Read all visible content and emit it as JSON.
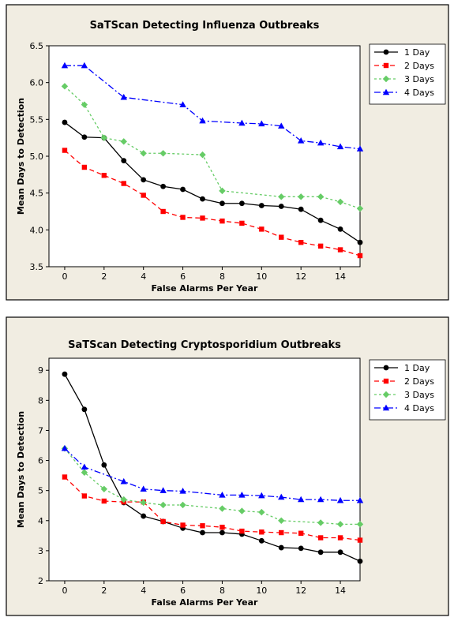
{
  "chart_data": [
    {
      "type": "line",
      "title": "SaTScan Detecting Influenza Outbreaks",
      "xlabel": "False Alarms Per Year",
      "ylabel": "Mean Days to Detection",
      "xlim": [
        -0.8,
        15
      ],
      "ylim": [
        3.5,
        6.5
      ],
      "xticks": [
        0,
        2,
        4,
        6,
        8,
        10,
        12,
        14
      ],
      "yticks": [
        3.5,
        4.0,
        4.5,
        5.0,
        5.5,
        6.0,
        6.5
      ],
      "ytick_labels": [
        "3.5",
        "4.0",
        "4.5",
        "5.0",
        "5.5",
        "6.0",
        "6.5"
      ],
      "legend_position": "top-right",
      "x": [
        0,
        1,
        2,
        3,
        4,
        5,
        6,
        7,
        8,
        9,
        10,
        11,
        12,
        13,
        14,
        15
      ],
      "series": [
        {
          "name": "1 Day",
          "color": "#000000",
          "dash": "",
          "marker": "circle",
          "values": [
            5.46,
            5.26,
            5.25,
            4.94,
            4.68,
            4.59,
            4.55,
            4.42,
            4.36,
            4.36,
            4.33,
            4.32,
            4.28,
            4.13,
            4.01,
            3.83
          ]
        },
        {
          "name": "2 Days",
          "color": "#ff0000",
          "dash": "6,4",
          "marker": "square",
          "values": [
            5.08,
            4.85,
            4.74,
            4.63,
            4.47,
            4.25,
            4.17,
            4.16,
            4.12,
            4.09,
            4.01,
            3.9,
            3.83,
            3.78,
            3.73,
            3.65
          ]
        },
        {
          "name": "3 Days",
          "color": "#66cc66",
          "dash": "3,3",
          "marker": "diamond",
          "values": [
            5.95,
            5.7,
            5.25,
            5.2,
            5.04,
            5.04,
            null,
            5.02,
            4.53,
            null,
            null,
            4.45,
            4.45,
            4.45,
            4.38,
            4.29
          ]
        },
        {
          "name": "4 Days",
          "color": "#0000ff",
          "dash": "8,3,2,3",
          "marker": "triangle",
          "values": [
            6.23,
            6.23,
            null,
            5.8,
            null,
            null,
            5.7,
            5.48,
            null,
            5.45,
            5.44,
            5.41,
            5.21,
            5.18,
            5.13,
            5.1
          ]
        }
      ]
    },
    {
      "type": "line",
      "title": "SaTScan Detecting Cryptosporidium Outbreaks",
      "xlabel": "False Alarms Per Year",
      "ylabel": "Mean Days to Detection",
      "xlim": [
        -0.8,
        15
      ],
      "ylim": [
        2,
        9.4
      ],
      "xticks": [
        0,
        2,
        4,
        6,
        8,
        10,
        12,
        14
      ],
      "yticks": [
        2,
        3,
        4,
        5,
        6,
        7,
        8,
        9
      ],
      "ytick_labels": [
        "2",
        "3",
        "4",
        "5",
        "6",
        "7",
        "8",
        "9"
      ],
      "legend_position": "top-right",
      "x": [
        0,
        1,
        2,
        3,
        4,
        5,
        6,
        7,
        8,
        9,
        10,
        11,
        12,
        13,
        14,
        15
      ],
      "series": [
        {
          "name": "1 Day",
          "color": "#000000",
          "dash": "",
          "marker": "circle",
          "values": [
            8.87,
            7.7,
            5.85,
            4.6,
            4.15,
            3.97,
            3.75,
            3.6,
            3.6,
            3.55,
            3.33,
            3.1,
            3.08,
            2.95,
            2.95,
            2.65
          ]
        },
        {
          "name": "2 Days",
          "color": "#ff0000",
          "dash": "6,4",
          "marker": "square",
          "values": [
            5.45,
            4.82,
            4.65,
            4.62,
            4.62,
            3.97,
            3.85,
            3.83,
            3.78,
            3.65,
            3.62,
            3.6,
            3.58,
            3.43,
            3.43,
            3.35
          ]
        },
        {
          "name": "3 Days",
          "color": "#66cc66",
          "dash": "3,3",
          "marker": "diamond",
          "values": [
            6.4,
            5.6,
            5.05,
            4.7,
            4.6,
            4.52,
            4.52,
            null,
            4.4,
            4.32,
            4.28,
            4.0,
            null,
            3.93,
            3.88,
            3.88
          ]
        },
        {
          "name": "4 Days",
          "color": "#0000ff",
          "dash": "8,3,2,3",
          "marker": "triangle",
          "values": [
            6.4,
            5.78,
            null,
            5.3,
            5.05,
            5.0,
            4.98,
            null,
            4.85,
            4.85,
            4.83,
            4.78,
            4.7,
            4.7,
            4.67,
            4.67
          ]
        }
      ]
    }
  ]
}
